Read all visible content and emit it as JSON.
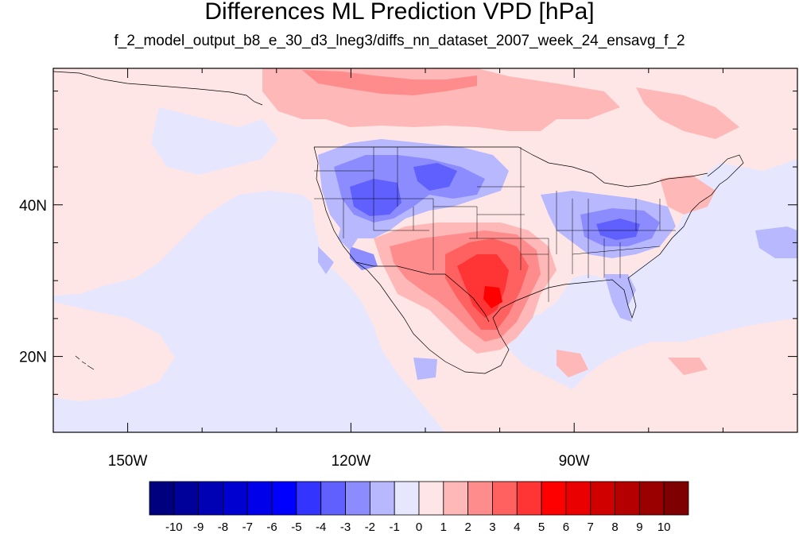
{
  "title": "Differences ML Prediction VPD [hPa]",
  "subtitle": "f_2_model_output_b8_e_30_d3_lneg3/diffs_nn_dataset_2007_week_24_ensavg_f_2",
  "map": {
    "lon_range": [
      -160,
      -60
    ],
    "lat_range": [
      10,
      58
    ],
    "lon_ticks": [
      {
        "value": -150,
        "label": "150W"
      },
      {
        "value": -120,
        "label": "120W"
      },
      {
        "value": -90,
        "label": "90W"
      }
    ],
    "lat_ticks": [
      {
        "value": 40,
        "label": "40N"
      },
      {
        "value": 20,
        "label": "20N"
      }
    ],
    "background_color": "#e6e6ff"
  },
  "colorbar": {
    "labels": [
      "-10",
      "-9",
      "-8",
      "-7",
      "-6",
      "-5",
      "-4",
      "-3",
      "-2",
      "-1",
      "0",
      "1",
      "2",
      "3",
      "4",
      "5",
      "6",
      "7",
      "8",
      "9",
      "10"
    ],
    "colors": [
      "#00007f",
      "#00009a",
      "#0000b5",
      "#0000d0",
      "#0000ea",
      "#0000ff",
      "#3434ff",
      "#6060ff",
      "#8c8cff",
      "#b8b8ff",
      "#e6e6ff",
      "#ffe6e6",
      "#ffb8b8",
      "#ff8c8c",
      "#ff6060",
      "#ff3434",
      "#ff0000",
      "#ea0000",
      "#d00000",
      "#b50000",
      "#9a0000",
      "#7f0000"
    ]
  }
}
